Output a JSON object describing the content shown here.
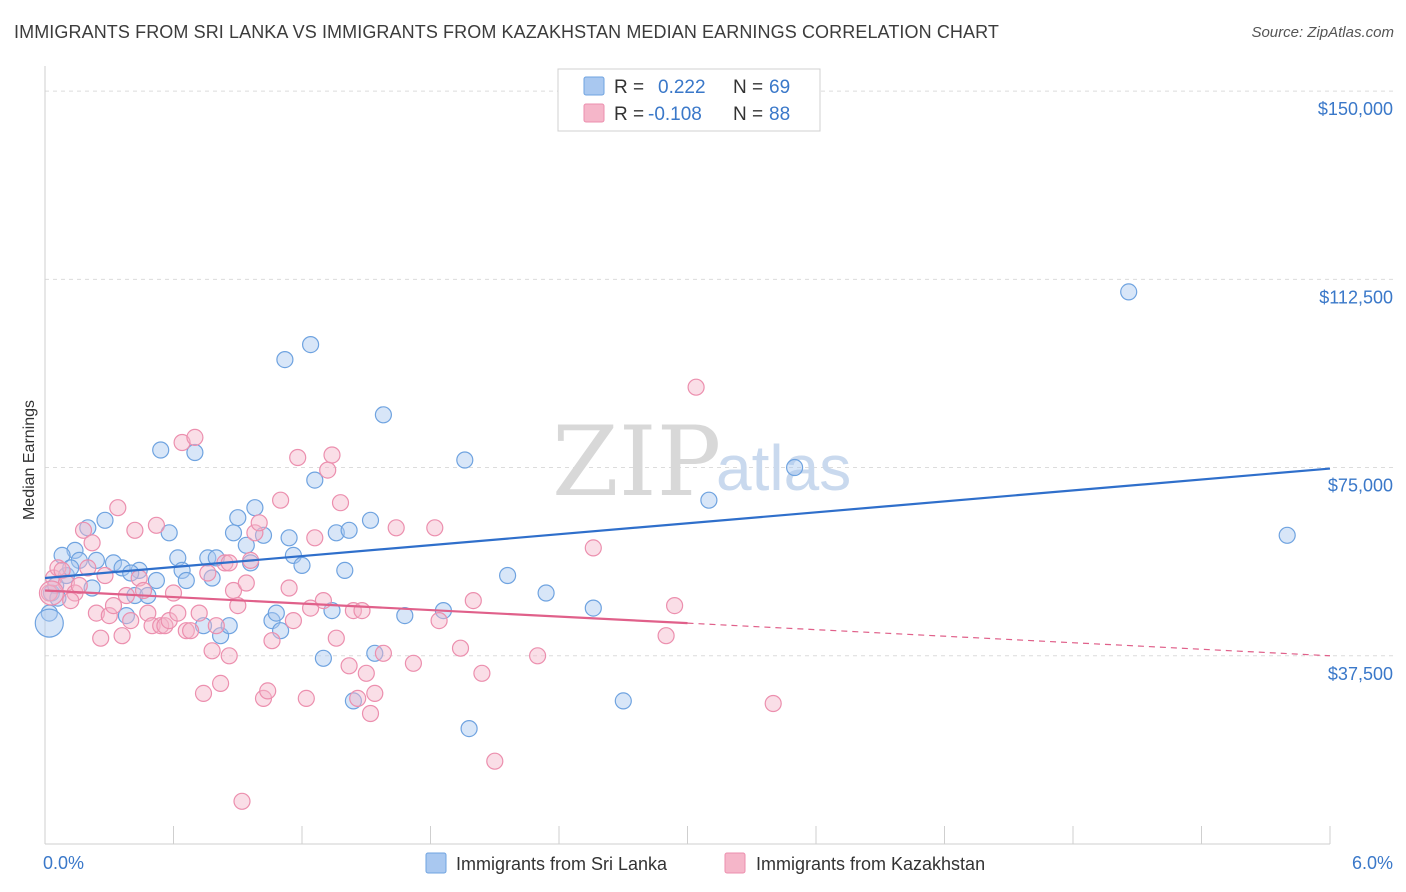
{
  "header": {
    "title": "IMMIGRANTS FROM SRI LANKA VS IMMIGRANTS FROM KAZAKHSTAN MEDIAN EARNINGS CORRELATION CHART",
    "source": "Source: ZipAtlas.com"
  },
  "watermark": {
    "zip": "ZIP",
    "atlas": "atlas"
  },
  "legend": {
    "r_label": "R =",
    "n_label": "N =",
    "rows": [
      {
        "r": "0.222",
        "n": "69",
        "color": "#a9c8f0"
      },
      {
        "r": "-0.108",
        "n": "88",
        "color": "#f5b6c9"
      }
    ]
  },
  "chart_data": {
    "type": "scatter",
    "title": "IMMIGRANTS FROM SRI LANKA VS IMMIGRANTS FROM KAZAKHSTAN MEDIAN EARNINGS CORRELATION CHART",
    "xlabel": "",
    "ylabel": "Median Earnings",
    "xlim": [
      0,
      6.0
    ],
    "ylim": [
      0,
      155000
    ],
    "x_tick_labels": [
      "0.0%",
      "6.0%"
    ],
    "y_ticks": [
      37500,
      75000,
      112500,
      150000
    ],
    "y_tick_labels": [
      "$37,500",
      "$75,000",
      "$112,500",
      "$150,000"
    ],
    "grid": "horizontal dashed",
    "legend_position": "top-center",
    "series": [
      {
        "name": "Immigrants from Sri Lanka",
        "color": "#6fa3e0",
        "fill": "#a9c8f0",
        "trend": {
          "x0": 0.0,
          "y0": 53000,
          "x1": 6.0,
          "y1": 74800,
          "color": "#2f6fcb"
        },
        "points": [
          [
            0.02,
            46000
          ],
          [
            0.03,
            50000
          ],
          [
            0.05,
            51500
          ],
          [
            0.1,
            53500
          ],
          [
            0.14,
            58500
          ],
          [
            0.16,
            56500
          ],
          [
            0.2,
            63000
          ],
          [
            0.22,
            51000
          ],
          [
            0.28,
            64500
          ],
          [
            0.32,
            56000
          ],
          [
            0.36,
            55000
          ],
          [
            0.38,
            45500
          ],
          [
            0.42,
            49500
          ],
          [
            0.44,
            54500
          ],
          [
            0.48,
            49500
          ],
          [
            0.52,
            52500
          ],
          [
            0.54,
            78500
          ],
          [
            0.58,
            62000
          ],
          [
            0.62,
            57000
          ],
          [
            0.64,
            54500
          ],
          [
            0.66,
            52500
          ],
          [
            0.7,
            78000
          ],
          [
            0.74,
            43500
          ],
          [
            0.76,
            57000
          ],
          [
            0.78,
            53000
          ],
          [
            0.8,
            57000
          ],
          [
            0.82,
            41500
          ],
          [
            0.86,
            43500
          ],
          [
            0.88,
            62000
          ],
          [
            0.9,
            65000
          ],
          [
            0.94,
            59500
          ],
          [
            0.96,
            56000
          ],
          [
            0.98,
            67000
          ],
          [
            1.02,
            61500
          ],
          [
            1.06,
            44500
          ],
          [
            1.08,
            46000
          ],
          [
            1.1,
            42500
          ],
          [
            1.12,
            96500
          ],
          [
            1.14,
            61000
          ],
          [
            1.16,
            57500
          ],
          [
            1.2,
            55500
          ],
          [
            1.24,
            99500
          ],
          [
            1.26,
            72500
          ],
          [
            1.3,
            37000
          ],
          [
            1.34,
            46500
          ],
          [
            1.36,
            62000
          ],
          [
            1.4,
            54500
          ],
          [
            1.42,
            62500
          ],
          [
            1.44,
            28500
          ],
          [
            1.52,
            64500
          ],
          [
            1.54,
            38000
          ],
          [
            1.58,
            85500
          ],
          [
            1.68,
            45500
          ],
          [
            1.86,
            46500
          ],
          [
            1.96,
            76500
          ],
          [
            1.98,
            23000
          ],
          [
            2.16,
            53500
          ],
          [
            2.34,
            50000
          ],
          [
            2.56,
            47000
          ],
          [
            2.7,
            28500
          ],
          [
            3.1,
            68500
          ],
          [
            3.5,
            75000
          ],
          [
            5.06,
            110000
          ],
          [
            5.8,
            61500
          ],
          [
            0.08,
            57500
          ],
          [
            0.06,
            49000
          ],
          [
            0.12,
            55000
          ],
          [
            0.24,
            56500
          ],
          [
            0.4,
            54000
          ]
        ]
      },
      {
        "name": "Immigrants from Kazakhstan",
        "color": "#ec8fae",
        "fill": "#f5b6c9",
        "trend": {
          "x0": 0.0,
          "y0": 50500,
          "x1": 3.0,
          "y1": 44000,
          "x2": 6.0,
          "y2": 37500,
          "color": "#e0608a"
        },
        "points": [
          [
            0.02,
            50000
          ],
          [
            0.04,
            53000
          ],
          [
            0.06,
            55000
          ],
          [
            0.08,
            54500
          ],
          [
            0.1,
            52000
          ],
          [
            0.14,
            50000
          ],
          [
            0.18,
            62500
          ],
          [
            0.2,
            55000
          ],
          [
            0.22,
            60000
          ],
          [
            0.24,
            46000
          ],
          [
            0.26,
            41000
          ],
          [
            0.3,
            45500
          ],
          [
            0.34,
            67000
          ],
          [
            0.36,
            41500
          ],
          [
            0.38,
            49500
          ],
          [
            0.4,
            44500
          ],
          [
            0.42,
            62500
          ],
          [
            0.44,
            53000
          ],
          [
            0.48,
            46000
          ],
          [
            0.5,
            43500
          ],
          [
            0.52,
            63500
          ],
          [
            0.54,
            43500
          ],
          [
            0.56,
            43500
          ],
          [
            0.58,
            44500
          ],
          [
            0.6,
            50000
          ],
          [
            0.62,
            46000
          ],
          [
            0.64,
            80000
          ],
          [
            0.66,
            42500
          ],
          [
            0.68,
            42500
          ],
          [
            0.7,
            81000
          ],
          [
            0.72,
            46000
          ],
          [
            0.74,
            30000
          ],
          [
            0.76,
            54000
          ],
          [
            0.78,
            38500
          ],
          [
            0.8,
            43500
          ],
          [
            0.82,
            32000
          ],
          [
            0.84,
            56000
          ],
          [
            0.86,
            37500
          ],
          [
            0.88,
            50500
          ],
          [
            0.9,
            47500
          ],
          [
            0.92,
            8500
          ],
          [
            0.94,
            52000
          ],
          [
            0.96,
            56500
          ],
          [
            0.98,
            62000
          ],
          [
            1.0,
            64000
          ],
          [
            1.02,
            29000
          ],
          [
            1.04,
            30500
          ],
          [
            1.06,
            40500
          ],
          [
            1.1,
            68500
          ],
          [
            1.14,
            51000
          ],
          [
            1.18,
            77000
          ],
          [
            1.22,
            29000
          ],
          [
            1.24,
            47000
          ],
          [
            1.26,
            61000
          ],
          [
            1.3,
            48500
          ],
          [
            1.32,
            74500
          ],
          [
            1.34,
            77500
          ],
          [
            1.36,
            41000
          ],
          [
            1.38,
            68000
          ],
          [
            1.42,
            35500
          ],
          [
            1.44,
            46500
          ],
          [
            1.46,
            29000
          ],
          [
            1.5,
            34000
          ],
          [
            1.52,
            26000
          ],
          [
            1.54,
            30000
          ],
          [
            1.58,
            38000
          ],
          [
            1.64,
            63000
          ],
          [
            1.72,
            36000
          ],
          [
            1.82,
            63000
          ],
          [
            1.84,
            44500
          ],
          [
            1.94,
            39000
          ],
          [
            2.0,
            48500
          ],
          [
            2.04,
            34000
          ],
          [
            2.1,
            16500
          ],
          [
            2.3,
            37500
          ],
          [
            2.56,
            59000
          ],
          [
            2.9,
            41500
          ],
          [
            2.94,
            47500
          ],
          [
            3.04,
            91000
          ],
          [
            3.4,
            28000
          ],
          [
            0.12,
            48500
          ],
          [
            0.16,
            51500
          ],
          [
            0.28,
            53500
          ],
          [
            0.32,
            47500
          ],
          [
            0.46,
            50500
          ],
          [
            0.86,
            56000
          ],
          [
            1.16,
            44500
          ],
          [
            1.48,
            46500
          ]
        ]
      }
    ]
  },
  "bottom_legend": {
    "items": [
      {
        "label": "Immigrants from Sri Lanka",
        "color": "#a9c8f0"
      },
      {
        "label": "Immigrants from Kazakhstan",
        "color": "#f5b6c9"
      }
    ]
  }
}
